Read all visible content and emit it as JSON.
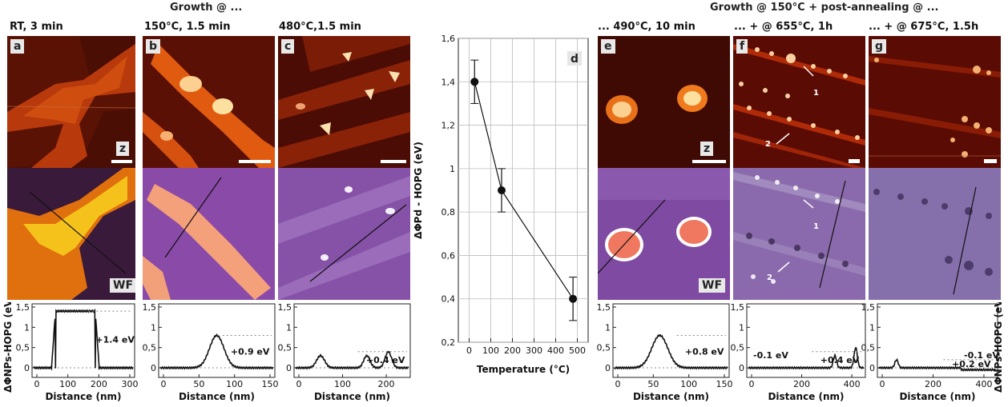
{
  "headers": {
    "left": "Growth @ ...",
    "right": "Growth @ 150°C + post-annealing @ ..."
  },
  "panels": [
    {
      "label": "a",
      "condition": "RT, 3 min",
      "top_badge": "z",
      "bottom_badge": "WF",
      "delta": "+1.4 eV",
      "xticks": [
        "0",
        "100",
        "200",
        "300"
      ]
    },
    {
      "label": "b",
      "condition": "150°C, 1.5 min",
      "top_badge": "",
      "bottom_badge": "",
      "delta": "+0.9 eV",
      "xticks": [
        "0",
        "50",
        "100",
        "150"
      ]
    },
    {
      "label": "c",
      "condition": "480°C,1.5 min",
      "top_badge": "",
      "bottom_badge": "",
      "delta": "+0.4 eV",
      "xticks": [
        "0",
        "100",
        "200"
      ]
    },
    {
      "label": "e",
      "condition": "... 490°C, 10 min",
      "top_badge": "z",
      "bottom_badge": "WF",
      "delta": "+0.8 eV",
      "xticks": [
        "0",
        "50",
        "100",
        "150"
      ]
    },
    {
      "label": "f",
      "condition": "... + @ 655°C, 1h",
      "top_badge": "",
      "bottom_badge": "",
      "delta": "+0.4 eV",
      "delta2": "-0.1 eV",
      "xticks": [
        "0",
        "200",
        "400"
      ],
      "arrows": [
        "1",
        "2"
      ]
    },
    {
      "label": "g",
      "condition": "... + @ 675°C, 1.5h",
      "top_badge": "",
      "bottom_badge": "",
      "delta": "+0.2 eV",
      "delta2": "-0.1 eV",
      "xticks": [
        "0",
        "200",
        "400"
      ]
    }
  ],
  "profile_axis": {
    "ylabel": "ΔΦNPs-HOPG (eV)",
    "xlabel": "Distance (nm)",
    "yticks": [
      "0",
      "0,5",
      "1",
      "1,5"
    ]
  },
  "chart_data": {
    "type": "scatter",
    "label": "d",
    "xlabel": "Temperature (°C)",
    "ylabel": "ΔΦPd - HOPG (eV)",
    "xlim": [
      -50,
      550
    ],
    "ylim": [
      0.2,
      1.6
    ],
    "xticks": [
      "0",
      "100",
      "200",
      "300",
      "400",
      "500"
    ],
    "yticks": [
      "0,2",
      "0,4",
      "0,6",
      "0,8",
      "1",
      "1,2",
      "1,4",
      "1,6"
    ],
    "grid": true,
    "points": [
      {
        "x": 25,
        "y": 1.4,
        "err": 0.1
      },
      {
        "x": 150,
        "y": 0.9,
        "err": 0.1
      },
      {
        "x": 480,
        "y": 0.4,
        "err": 0.1
      }
    ]
  }
}
